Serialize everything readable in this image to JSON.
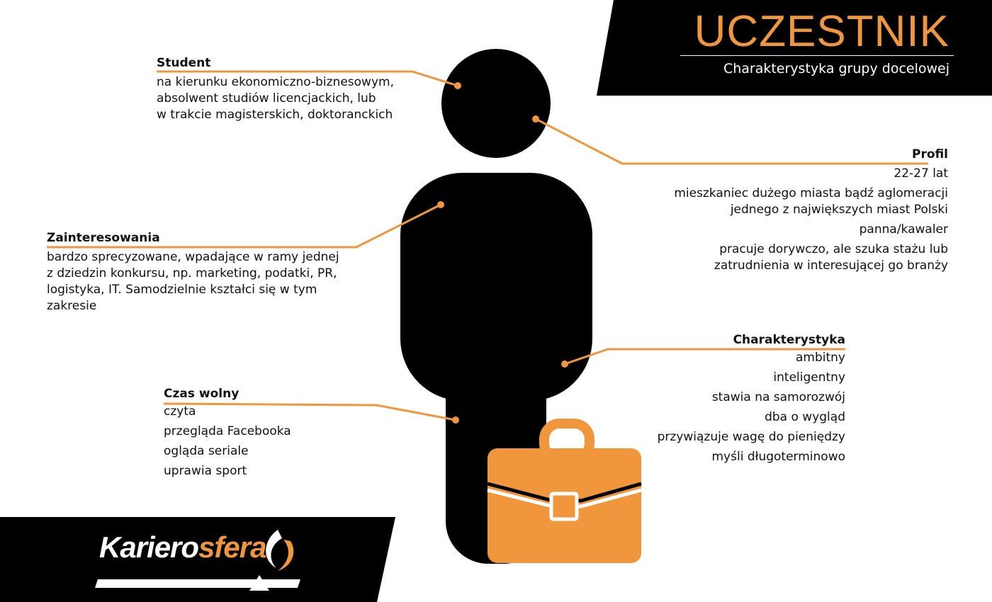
{
  "header": {
    "title": "UCZESTNIK",
    "subtitle": "Charakterystyka grupy docelowej"
  },
  "student": {
    "heading": "Student",
    "lines": [
      "na kierunku ekonomiczno-biznesowym,",
      "absolwent studiów licencjackich, lub",
      "w trakcie magisterskich, doktoranckich"
    ]
  },
  "profil": {
    "heading": "Profil",
    "lines": [
      "22-27 lat",
      "mieszkaniec dużego miasta bądź aglomeracji",
      "jednego z największych miast Polski",
      "panna/kawaler",
      "pracuje dorywczo, ale szuka stażu lub",
      "zatrudnienia w interesującej go branży"
    ]
  },
  "zainteresowania": {
    "heading": "Zainteresowania",
    "lines": [
      "bardzo sprecyzowane, wpadające w ramy jednej",
      "z dziedzin konkursu, np. marketing, podatki, PR,",
      "logistyka, IT. Samodzielnie kształci się w tym",
      "zakresie"
    ]
  },
  "charakterystyka": {
    "heading": "Charakterystyka",
    "items": [
      "ambitny",
      "inteligentny",
      "stawia na samorozwój",
      "dba o wygląd",
      "przywiązuje wagę do pieniędzy",
      "myśli długoterminowo"
    ]
  },
  "czas_wolny": {
    "heading": "Czas wolny",
    "items": [
      "czyta",
      "przegląda Facebooka",
      "ogląda seriale",
      "uprawia sport"
    ]
  },
  "logo": {
    "part1": "Kariero",
    "part2": "sfera"
  },
  "colors": {
    "accent": "#f0963d",
    "figure": "#000000",
    "banner": "#000000"
  },
  "icons": [
    "person-silhouette-icon",
    "briefcase-icon",
    "logo-swoosh-icon"
  ]
}
